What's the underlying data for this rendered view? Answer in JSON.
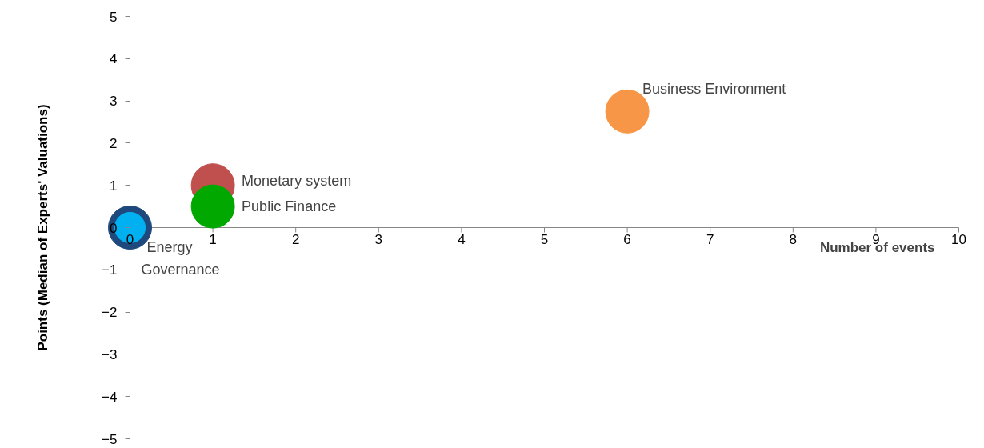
{
  "chart_data": {
    "type": "bubble",
    "xlabel": "Number of events",
    "ylabel": "Points (Median of Experts' Valuations)",
    "xlim": [
      0,
      10
    ],
    "xticks": [
      0,
      1,
      2,
      3,
      4,
      5,
      6,
      7,
      8,
      9,
      10
    ],
    "ylim": [
      -5,
      5
    ],
    "yticks": [
      -5,
      -4,
      -3,
      -2,
      -1,
      0,
      1,
      2,
      3,
      4,
      5
    ],
    "grid": false,
    "series": [
      {
        "name": "Business Environment",
        "color": "#f79646",
        "x": [
          6
        ],
        "values": [
          2.75
        ],
        "sizes": [
          1
        ]
      },
      {
        "name": "Monetary system",
        "color": "#c0504d",
        "x": [
          1
        ],
        "values": [
          1
        ],
        "sizes": [
          1
        ]
      },
      {
        "name": "Public Finance",
        "color": "#00a800",
        "x": [
          1
        ],
        "values": [
          0.5
        ],
        "sizes": [
          1
        ]
      },
      {
        "name": "Energy",
        "color": "#1f497d",
        "x": [
          0
        ],
        "values": [
          0
        ],
        "sizes": [
          1
        ]
      },
      {
        "name": "Governance",
        "color": "#00b0f0",
        "x": [
          0
        ],
        "values": [
          0
        ],
        "sizes": [
          0.5
        ]
      }
    ]
  }
}
